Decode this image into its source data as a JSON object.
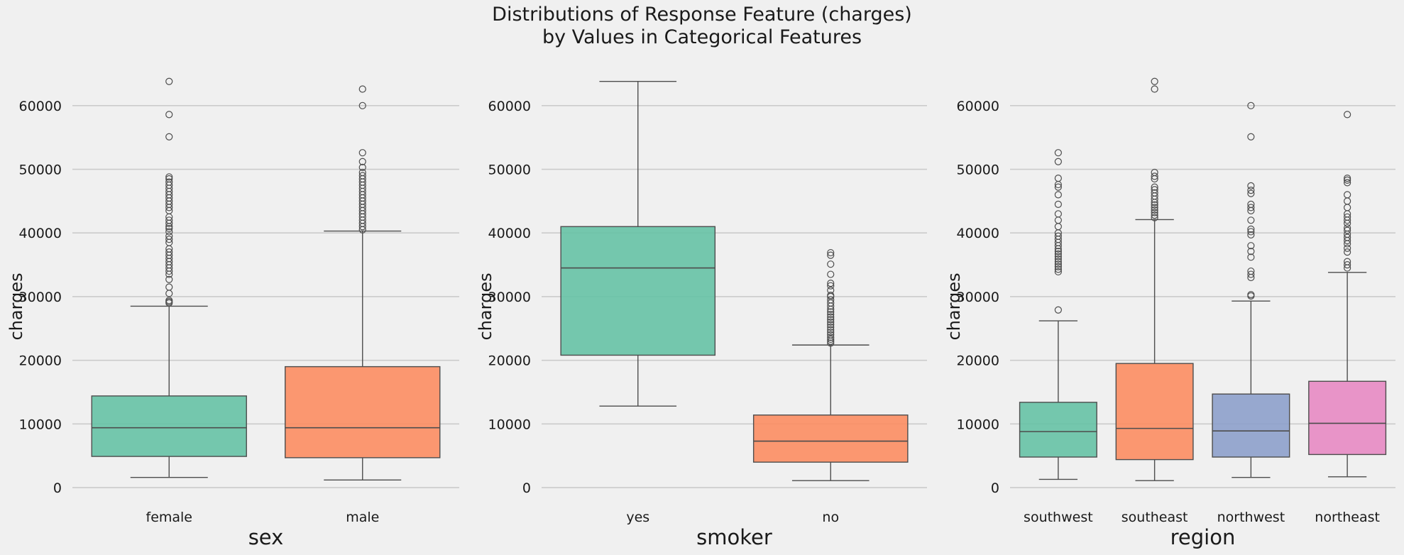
{
  "figure": {
    "title_line1": "Distributions of Response Feature (charges)",
    "title_line2": "by Values in Categorical Features",
    "background": "#f0f0f0",
    "grid_color": "#cbcbcb",
    "palette": [
      "#66c2a5",
      "#fc8d62",
      "#8da0cb",
      "#e78ac3"
    ]
  },
  "chart_data": [
    {
      "type": "box",
      "xlabel": "sex",
      "ylabel": "charges",
      "ylim": [
        -2000,
        66000
      ],
      "yticks": [
        0,
        10000,
        20000,
        30000,
        40000,
        50000,
        60000
      ],
      "grid": true,
      "categories": [
        "female",
        "male"
      ],
      "boxes": [
        {
          "category": "female",
          "whislo": 1600,
          "q1": 4900,
          "median": 9400,
          "q3": 14400,
          "whishi": 28500,
          "fliers": [
            29000,
            29200,
            29400,
            30500,
            31500,
            32700,
            33500,
            34000,
            34500,
            35000,
            35500,
            36000,
            36500,
            37000,
            37500,
            38500,
            39000,
            39500,
            40200,
            40700,
            41000,
            41500,
            42000,
            42500,
            43500,
            44000,
            44500,
            45000,
            45500,
            46000,
            46500,
            47000,
            47500,
            48000,
            48500,
            48800,
            55100,
            58600,
            63800
          ]
        },
        {
          "category": "male",
          "whislo": 1200,
          "q1": 4700,
          "median": 9400,
          "q3": 19000,
          "whishi": 40300,
          "fliers": [
            40500,
            41000,
            41500,
            42000,
            42500,
            43000,
            43500,
            44000,
            44500,
            45000,
            45500,
            46000,
            46500,
            47000,
            47500,
            48000,
            48500,
            49000,
            49500,
            50300,
            51200,
            52600,
            60000,
            62600
          ]
        }
      ]
    },
    {
      "type": "box",
      "xlabel": "smoker",
      "ylabel": "charges",
      "ylim": [
        -2000,
        66000
      ],
      "yticks": [
        0,
        10000,
        20000,
        30000,
        40000,
        50000,
        60000
      ],
      "grid": true,
      "categories": [
        "yes",
        "no"
      ],
      "boxes": [
        {
          "category": "yes",
          "whislo": 12800,
          "q1": 20800,
          "median": 34500,
          "q3": 41000,
          "whishi": 63800,
          "fliers": []
        },
        {
          "category": "no",
          "whislo": 1100,
          "q1": 4000,
          "median": 7300,
          "q3": 11400,
          "whishi": 22400,
          "fliers": [
            22700,
            23000,
            23300,
            23600,
            24000,
            24400,
            24800,
            25200,
            25600,
            26000,
            26400,
            26800,
            27200,
            27600,
            28000,
            28500,
            29000,
            29500,
            30000,
            30200,
            31000,
            31700,
            32100,
            33500,
            35100,
            36500,
            36900
          ]
        }
      ]
    },
    {
      "type": "box",
      "xlabel": "region",
      "ylabel": "charges",
      "ylim": [
        -2000,
        66000
      ],
      "yticks": [
        0,
        10000,
        20000,
        30000,
        40000,
        50000,
        60000
      ],
      "grid": true,
      "categories": [
        "southwest",
        "southeast",
        "northwest",
        "northeast"
      ],
      "boxes": [
        {
          "category": "southwest",
          "whislo": 1300,
          "q1": 4800,
          "median": 8800,
          "q3": 13400,
          "whishi": 26200,
          "fliers": [
            27900,
            33900,
            34300,
            34700,
            35100,
            35500,
            35900,
            36300,
            36700,
            37100,
            37500,
            38000,
            38500,
            39000,
            39500,
            40000,
            41000,
            42000,
            43000,
            44500,
            46000,
            47200,
            47600,
            48600,
            51200,
            52600
          ]
        },
        {
          "category": "southeast",
          "whislo": 1100,
          "q1": 4400,
          "median": 9300,
          "q3": 19500,
          "whishi": 42100,
          "fliers": [
            42400,
            42800,
            43200,
            43600,
            44000,
            44400,
            44800,
            45300,
            45800,
            46300,
            46800,
            47200,
            48500,
            48900,
            49500,
            62600,
            63800
          ]
        },
        {
          "category": "northwest",
          "whislo": 1600,
          "q1": 4800,
          "median": 8900,
          "q3": 14700,
          "whishi": 29300,
          "fliers": [
            30100,
            30300,
            33000,
            33500,
            34000,
            36200,
            37100,
            38000,
            39700,
            40200,
            40600,
            42000,
            43500,
            44000,
            44500,
            46200,
            46700,
            47400,
            55100,
            60000
          ]
        },
        {
          "category": "northeast",
          "whislo": 1700,
          "q1": 5200,
          "median": 10100,
          "q3": 16700,
          "whishi": 33800,
          "fliers": [
            34500,
            35000,
            35500,
            37000,
            37600,
            38300,
            38800,
            39300,
            39800,
            40400,
            40800,
            41500,
            42000,
            42500,
            43000,
            44000,
            45000,
            46000,
            47900,
            48300,
            48600,
            58600
          ]
        }
      ]
    }
  ]
}
